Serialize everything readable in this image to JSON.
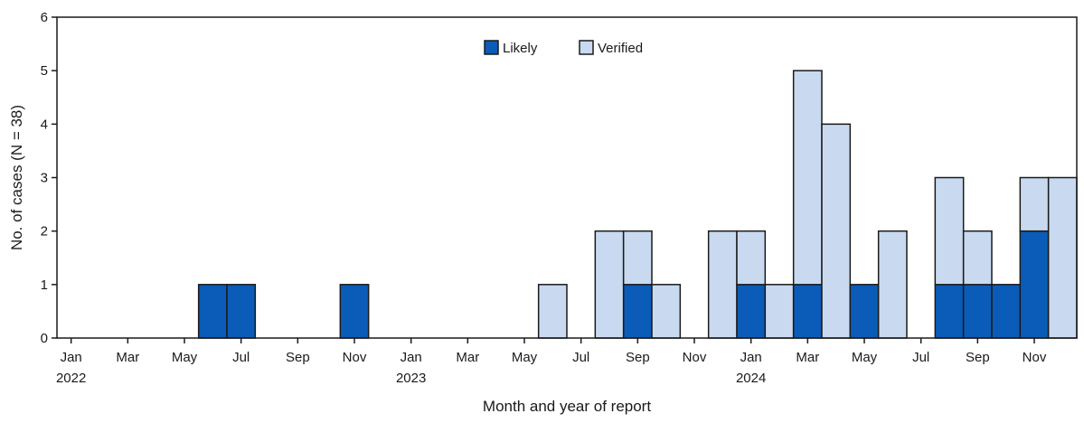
{
  "chart_data": {
    "type": "bar",
    "stacked": true,
    "x_axis_title": "Month and year of report",
    "y_axis_title": "No. of cases (N = 38)",
    "ylim": [
      0,
      6
    ],
    "y_ticks": [
      0,
      1,
      2,
      3,
      4,
      5,
      6
    ],
    "grid": false,
    "legend_position": "top-center",
    "months": [
      "2022-01",
      "2022-02",
      "2022-03",
      "2022-04",
      "2022-05",
      "2022-06",
      "2022-07",
      "2022-08",
      "2022-09",
      "2022-10",
      "2022-11",
      "2022-12",
      "2023-01",
      "2023-02",
      "2023-03",
      "2023-04",
      "2023-05",
      "2023-06",
      "2023-07",
      "2023-08",
      "2023-09",
      "2023-10",
      "2023-11",
      "2023-12",
      "2024-01",
      "2024-02",
      "2024-03",
      "2024-04",
      "2024-05",
      "2024-06",
      "2024-07",
      "2024-08",
      "2024-09",
      "2024-10",
      "2024-11",
      "2024-12"
    ],
    "series": [
      {
        "name": "Likely",
        "color": "#0b5cb8",
        "values": [
          0,
          0,
          0,
          0,
          0,
          1,
          1,
          0,
          0,
          0,
          1,
          0,
          0,
          0,
          0,
          0,
          0,
          0,
          0,
          0,
          1,
          0,
          0,
          0,
          1,
          0,
          1,
          0,
          1,
          0,
          0,
          1,
          1,
          1,
          2,
          0
        ]
      },
      {
        "name": "Verified",
        "color": "#c9daf0",
        "values": [
          0,
          0,
          0,
          0,
          0,
          0,
          0,
          0,
          0,
          0,
          0,
          0,
          0,
          0,
          0,
          0,
          0,
          1,
          0,
          2,
          1,
          1,
          0,
          2,
          1,
          1,
          4,
          4,
          0,
          2,
          0,
          2,
          1,
          0,
          1,
          3
        ]
      }
    ],
    "x_tick_labels": [
      {
        "month_index": 0,
        "label": "Jan",
        "year": "2022"
      },
      {
        "month_index": 2,
        "label": "Mar",
        "year": ""
      },
      {
        "month_index": 4,
        "label": "May",
        "year": ""
      },
      {
        "month_index": 6,
        "label": "Jul",
        "year": ""
      },
      {
        "month_index": 8,
        "label": "Sep",
        "year": ""
      },
      {
        "month_index": 10,
        "label": "Nov",
        "year": ""
      },
      {
        "month_index": 12,
        "label": "Jan",
        "year": "2023"
      },
      {
        "month_index": 14,
        "label": "Mar",
        "year": ""
      },
      {
        "month_index": 16,
        "label": "May",
        "year": ""
      },
      {
        "month_index": 18,
        "label": "Jul",
        "year": ""
      },
      {
        "month_index": 20,
        "label": "Sep",
        "year": ""
      },
      {
        "month_index": 22,
        "label": "Nov",
        "year": ""
      },
      {
        "month_index": 24,
        "label": "Jan",
        "year": "2024"
      },
      {
        "month_index": 26,
        "label": "Mar",
        "year": ""
      },
      {
        "month_index": 28,
        "label": "May",
        "year": ""
      },
      {
        "month_index": 30,
        "label": "Jul",
        "year": ""
      },
      {
        "month_index": 32,
        "label": "Sep",
        "year": ""
      },
      {
        "month_index": 34,
        "label": "Nov",
        "year": ""
      }
    ]
  }
}
